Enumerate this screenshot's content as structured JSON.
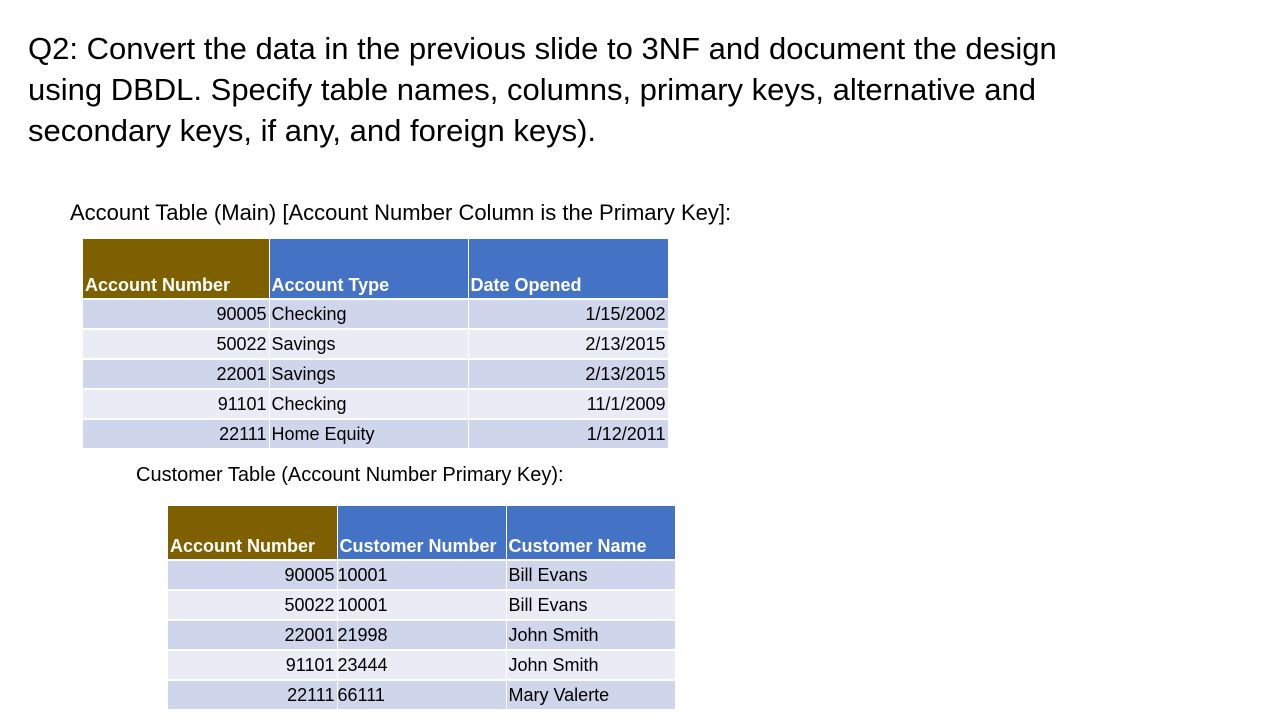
{
  "question": "Q2: Convert the data in the previous slide to 3NF and document the design using DBDL.  Specify table names, columns, primary keys, alternative and secondary keys, if any, and foreign keys).",
  "account_table": {
    "caption": "Account Table (Main) [Account Number Column is the Primary Key]:",
    "headers": [
      "Account Number",
      "Account Type",
      "Date Opened"
    ],
    "rows": [
      {
        "account_number": "90005",
        "account_type": "Checking",
        "date_opened": "1/15/2002"
      },
      {
        "account_number": "50022",
        "account_type": "Savings",
        "date_opened": "2/13/2015"
      },
      {
        "account_number": "22001",
        "account_type": "Savings",
        "date_opened": "2/13/2015"
      },
      {
        "account_number": "91101",
        "account_type": "Checking",
        "date_opened": "11/1/2009"
      },
      {
        "account_number": "22111",
        "account_type": "Home Equity",
        "date_opened": "1/12/2011"
      }
    ]
  },
  "customer_table": {
    "caption": "Customer Table (Account Number Primary Key):",
    "headers": [
      "Account Number",
      "Customer Number",
      "Customer Name"
    ],
    "rows": [
      {
        "account_number": "90005",
        "customer_number": "10001",
        "customer_name": "Bill Evans"
      },
      {
        "account_number": "50022",
        "customer_number": "10001",
        "customer_name": "Bill Evans"
      },
      {
        "account_number": "22001",
        "customer_number": "21998",
        "customer_name": "John Smith"
      },
      {
        "account_number": "91101",
        "customer_number": "23444",
        "customer_name": "John Smith"
      },
      {
        "account_number": "22111",
        "customer_number": "66111",
        "customer_name": "Mary Valerte"
      }
    ]
  },
  "colors": {
    "key_header": "#7f6000",
    "header": "#4472c4",
    "row_odd": "#cfd5ea",
    "row_even": "#e9ebf5"
  }
}
